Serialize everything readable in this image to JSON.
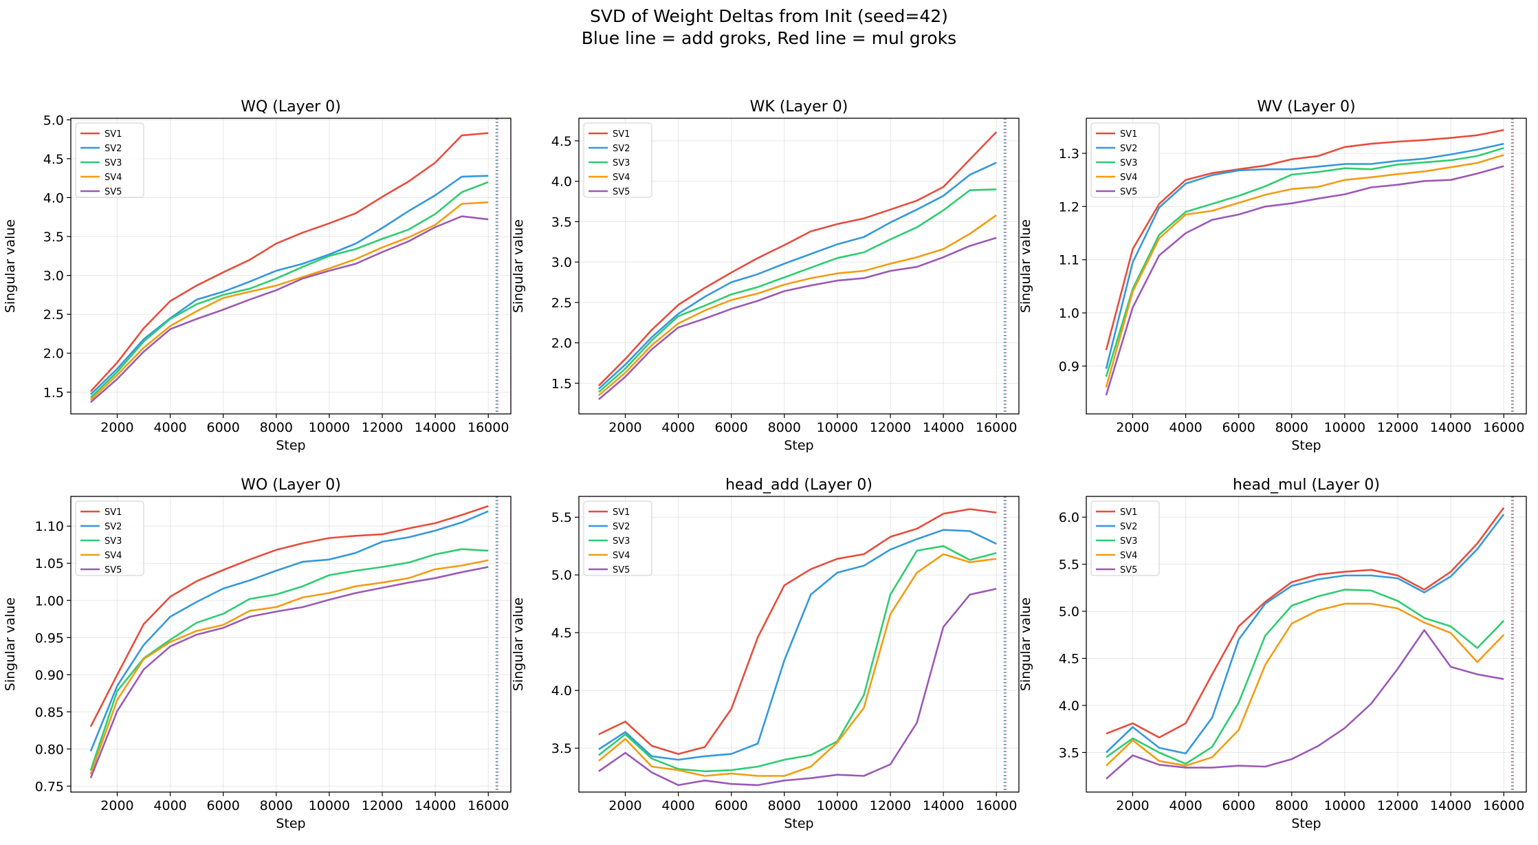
{
  "figure": {
    "title_line1": "SVD of Weight Deltas from Init (seed=42)",
    "title_line2": "Blue line = add groks, Red line = mul groks"
  },
  "series_colors": {
    "SV1": "#e74c3c",
    "SV2": "#3498db",
    "SV3": "#2ecc71",
    "SV4": "#f39c12",
    "SV5": "#9b59b6"
  },
  "marker_colors": {
    "add_groks": "#3498db",
    "mul_groks": "#e74c3c"
  },
  "chart_data": [
    {
      "type": "line",
      "title": "WQ (Layer 0)",
      "xlabel": "Step",
      "ylabel": "Singular value",
      "x": [
        1000,
        2000,
        3000,
        4000,
        5000,
        6000,
        7000,
        8000,
        9000,
        10000,
        11000,
        12000,
        13000,
        14000,
        15000,
        16000
      ],
      "xticks": [
        2000,
        4000,
        6000,
        8000,
        10000,
        12000,
        14000,
        16000
      ],
      "yticks": [
        1.5,
        2.0,
        2.5,
        3.0,
        3.5,
        4.0,
        4.5,
        5.0
      ],
      "ytick_labels": [
        "1.5",
        "2.0",
        "2.5",
        "3.0",
        "3.5",
        "4.0",
        "4.5",
        "5.0"
      ],
      "xlim": [
        250,
        16850
      ],
      "ylim": [
        1.22,
        5.02
      ],
      "grid": true,
      "legend": "upper left",
      "vlines": [
        16300,
        16350
      ],
      "series": [
        {
          "name": "SV1",
          "values": [
            1.51,
            1.88,
            2.32,
            2.67,
            2.87,
            3.04,
            3.2,
            3.41,
            3.55,
            3.67,
            3.8,
            4.01,
            4.21,
            4.45,
            4.8,
            4.83
          ]
        },
        {
          "name": "SV2",
          "values": [
            1.47,
            1.8,
            2.18,
            2.45,
            2.69,
            2.79,
            2.92,
            3.06,
            3.15,
            3.27,
            3.41,
            3.61,
            3.83,
            4.03,
            4.27,
            4.28
          ]
        },
        {
          "name": "SV3",
          "values": [
            1.43,
            1.76,
            2.15,
            2.44,
            2.63,
            2.75,
            2.83,
            2.96,
            3.11,
            3.25,
            3.34,
            3.47,
            3.59,
            3.79,
            4.07,
            4.2
          ]
        },
        {
          "name": "SV4",
          "values": [
            1.4,
            1.72,
            2.07,
            2.35,
            2.54,
            2.71,
            2.79,
            2.87,
            2.98,
            3.09,
            3.21,
            3.36,
            3.49,
            3.65,
            3.92,
            3.94
          ]
        },
        {
          "name": "SV5",
          "values": [
            1.37,
            1.67,
            2.02,
            2.31,
            2.44,
            2.56,
            2.69,
            2.81,
            2.96,
            3.06,
            3.15,
            3.3,
            3.44,
            3.62,
            3.76,
            3.72
          ]
        }
      ]
    },
    {
      "type": "line",
      "title": "WK (Layer 0)",
      "xlabel": "Step",
      "ylabel": "Singular value",
      "x": [
        1000,
        2000,
        3000,
        4000,
        5000,
        6000,
        7000,
        8000,
        9000,
        10000,
        11000,
        12000,
        13000,
        14000,
        15000,
        16000
      ],
      "xticks": [
        2000,
        4000,
        6000,
        8000,
        10000,
        12000,
        14000,
        16000
      ],
      "yticks": [
        1.5,
        2.0,
        2.5,
        3.0,
        3.5,
        4.0,
        4.5
      ],
      "ytick_labels": [
        "1.5",
        "2.0",
        "2.5",
        "3.0",
        "3.5",
        "4.0",
        "4.5"
      ],
      "xlim": [
        250,
        16850
      ],
      "ylim": [
        1.12,
        4.78
      ],
      "grid": true,
      "legend": "upper left",
      "vlines": [
        16300,
        16350
      ],
      "series": [
        {
          "name": "SV1",
          "values": [
            1.47,
            1.8,
            2.16,
            2.47,
            2.68,
            2.87,
            3.05,
            3.21,
            3.38,
            3.47,
            3.54,
            3.65,
            3.76,
            3.93,
            4.27,
            4.61
          ]
        },
        {
          "name": "SV2",
          "values": [
            1.43,
            1.73,
            2.07,
            2.36,
            2.57,
            2.75,
            2.85,
            2.98,
            3.1,
            3.22,
            3.31,
            3.49,
            3.65,
            3.82,
            4.08,
            4.23
          ]
        },
        {
          "name": "SV3",
          "values": [
            1.39,
            1.68,
            2.03,
            2.33,
            2.46,
            2.6,
            2.69,
            2.81,
            2.93,
            3.05,
            3.12,
            3.28,
            3.43,
            3.64,
            3.89,
            3.9
          ]
        },
        {
          "name": "SV4",
          "values": [
            1.35,
            1.63,
            1.97,
            2.24,
            2.4,
            2.53,
            2.61,
            2.72,
            2.8,
            2.86,
            2.89,
            2.98,
            3.06,
            3.16,
            3.35,
            3.58
          ]
        },
        {
          "name": "SV5",
          "values": [
            1.3,
            1.58,
            1.92,
            2.19,
            2.3,
            2.42,
            2.52,
            2.64,
            2.71,
            2.77,
            2.8,
            2.89,
            2.94,
            3.06,
            3.2,
            3.3
          ]
        }
      ]
    },
    {
      "type": "line",
      "title": "WV (Layer 0)",
      "xlabel": "Step",
      "ylabel": "Singular value",
      "x": [
        1000,
        2000,
        3000,
        4000,
        5000,
        6000,
        7000,
        8000,
        9000,
        10000,
        11000,
        12000,
        13000,
        14000,
        15000,
        16000
      ],
      "xticks": [
        2000,
        4000,
        6000,
        8000,
        10000,
        12000,
        14000,
        16000
      ],
      "yticks": [
        0.9,
        1.0,
        1.1,
        1.2,
        1.3
      ],
      "ytick_labels": [
        "0.9",
        "1.0",
        "1.1",
        "1.2",
        "1.3"
      ],
      "xlim": [
        250,
        16850
      ],
      "ylim": [
        0.81,
        1.366
      ],
      "grid": true,
      "legend": "upper left",
      "vlines": [
        16300,
        16350
      ],
      "series": [
        {
          "name": "SV1",
          "values": [
            0.93,
            1.12,
            1.205,
            1.25,
            1.263,
            1.27,
            1.277,
            1.289,
            1.295,
            1.312,
            1.318,
            1.322,
            1.325,
            1.329,
            1.334,
            1.344
          ]
        },
        {
          "name": "SV2",
          "values": [
            0.895,
            1.095,
            1.198,
            1.243,
            1.259,
            1.268,
            1.27,
            1.27,
            1.275,
            1.28,
            1.28,
            1.286,
            1.29,
            1.298,
            1.307,
            1.318
          ]
        },
        {
          "name": "SV3",
          "values": [
            0.88,
            1.045,
            1.147,
            1.19,
            1.205,
            1.22,
            1.238,
            1.26,
            1.265,
            1.272,
            1.27,
            1.279,
            1.283,
            1.287,
            1.295,
            1.31
          ]
        },
        {
          "name": "SV4",
          "values": [
            0.86,
            1.04,
            1.14,
            1.185,
            1.192,
            1.207,
            1.222,
            1.233,
            1.237,
            1.25,
            1.255,
            1.261,
            1.266,
            1.274,
            1.282,
            1.297
          ]
        },
        {
          "name": "SV5",
          "values": [
            0.845,
            1.01,
            1.108,
            1.15,
            1.175,
            1.185,
            1.2,
            1.206,
            1.215,
            1.223,
            1.236,
            1.241,
            1.248,
            1.25,
            1.262,
            1.276
          ]
        }
      ]
    },
    {
      "type": "line",
      "title": "WO (Layer 0)",
      "xlabel": "Step",
      "ylabel": "Singular value",
      "x": [
        1000,
        2000,
        3000,
        4000,
        5000,
        6000,
        7000,
        8000,
        9000,
        10000,
        11000,
        12000,
        13000,
        14000,
        15000,
        16000
      ],
      "xticks": [
        2000,
        4000,
        6000,
        8000,
        10000,
        12000,
        14000,
        16000
      ],
      "yticks": [
        0.75,
        0.8,
        0.85,
        0.9,
        0.95,
        1.0,
        1.05,
        1.1
      ],
      "ytick_labels": [
        "0.75",
        "0.80",
        "0.85",
        "0.90",
        "0.95",
        "1.00",
        "1.05",
        "1.10"
      ],
      "xlim": [
        250,
        16850
      ],
      "ylim": [
        0.742,
        1.14
      ],
      "grid": true,
      "legend": "upper left",
      "vlines": [
        16300,
        16350
      ],
      "series": [
        {
          "name": "SV1",
          "values": [
            0.83,
            0.9,
            0.968,
            1.005,
            1.026,
            1.041,
            1.055,
            1.068,
            1.077,
            1.084,
            1.087,
            1.089,
            1.097,
            1.104,
            1.115,
            1.127
          ]
        },
        {
          "name": "SV2",
          "values": [
            0.797,
            0.885,
            0.94,
            0.978,
            0.998,
            1.016,
            1.027,
            1.04,
            1.052,
            1.055,
            1.064,
            1.079,
            1.085,
            1.094,
            1.105,
            1.12
          ]
        },
        {
          "name": "SV3",
          "values": [
            0.771,
            0.878,
            0.922,
            0.947,
            0.97,
            0.982,
            1.002,
            1.008,
            1.019,
            1.034,
            1.04,
            1.045,
            1.051,
            1.062,
            1.069,
            1.067
          ]
        },
        {
          "name": "SV4",
          "values": [
            0.766,
            0.866,
            0.921,
            0.944,
            0.959,
            0.967,
            0.986,
            0.991,
            1.004,
            1.01,
            1.019,
            1.024,
            1.03,
            1.042,
            1.047,
            1.054
          ]
        },
        {
          "name": "SV5",
          "values": [
            0.761,
            0.851,
            0.907,
            0.938,
            0.954,
            0.963,
            0.978,
            0.985,
            0.991,
            1.001,
            1.01,
            1.017,
            1.024,
            1.03,
            1.038,
            1.045
          ]
        }
      ]
    },
    {
      "type": "line",
      "title": "head_add (Layer 0)",
      "xlabel": "Step",
      "ylabel": "Singular value",
      "x": [
        1000,
        2000,
        3000,
        4000,
        5000,
        6000,
        7000,
        8000,
        9000,
        10000,
        11000,
        12000,
        13000,
        14000,
        15000,
        16000
      ],
      "xticks": [
        2000,
        4000,
        6000,
        8000,
        10000,
        12000,
        14000,
        16000
      ],
      "yticks": [
        3.5,
        4.0,
        4.5,
        5.0,
        5.5
      ],
      "ytick_labels": [
        "3.5",
        "4.0",
        "4.5",
        "5.0",
        "5.5"
      ],
      "xlim": [
        250,
        16850
      ],
      "ylim": [
        3.12,
        5.68
      ],
      "grid": true,
      "legend": "upper left",
      "vlines": [
        16300,
        16350
      ],
      "series": [
        {
          "name": "SV1",
          "values": [
            3.62,
            3.73,
            3.52,
            3.45,
            3.51,
            3.84,
            4.46,
            4.91,
            5.05,
            5.14,
            5.18,
            5.33,
            5.4,
            5.53,
            5.57,
            5.54
          ]
        },
        {
          "name": "SV2",
          "values": [
            3.49,
            3.64,
            3.43,
            3.4,
            3.43,
            3.45,
            3.54,
            4.26,
            4.83,
            5.02,
            5.08,
            5.22,
            5.31,
            5.39,
            5.38,
            5.27
          ]
        },
        {
          "name": "SV3",
          "values": [
            3.44,
            3.62,
            3.41,
            3.32,
            3.3,
            3.31,
            3.34,
            3.4,
            3.44,
            3.56,
            3.96,
            4.83,
            5.21,
            5.25,
            5.13,
            5.19
          ]
        },
        {
          "name": "SV4",
          "values": [
            3.39,
            3.58,
            3.34,
            3.31,
            3.26,
            3.28,
            3.26,
            3.26,
            3.34,
            3.55,
            3.85,
            4.66,
            5.02,
            5.18,
            5.11,
            5.14
          ]
        },
        {
          "name": "SV5",
          "values": [
            3.3,
            3.46,
            3.29,
            3.18,
            3.22,
            3.19,
            3.18,
            3.22,
            3.24,
            3.27,
            3.26,
            3.36,
            3.72,
            4.55,
            4.83,
            4.88
          ]
        }
      ]
    },
    {
      "type": "line",
      "title": "head_mul (Layer 0)",
      "xlabel": "Step",
      "ylabel": "Singular value",
      "x": [
        1000,
        2000,
        3000,
        4000,
        5000,
        6000,
        7000,
        8000,
        9000,
        10000,
        11000,
        12000,
        13000,
        14000,
        15000,
        16000
      ],
      "xticks": [
        2000,
        4000,
        6000,
        8000,
        10000,
        12000,
        14000,
        16000
      ],
      "yticks": [
        3.5,
        4.0,
        4.5,
        5.0,
        5.5,
        6.0
      ],
      "ytick_labels": [
        "3.5",
        "4.0",
        "4.5",
        "5.0",
        "5.5",
        "6.0"
      ],
      "xlim": [
        250,
        16850
      ],
      "ylim": [
        3.08,
        6.22
      ],
      "grid": true,
      "legend": "upper left",
      "vlines": [
        16300,
        16350
      ],
      "series": [
        {
          "name": "SV1",
          "values": [
            3.7,
            3.81,
            3.66,
            3.81,
            4.33,
            4.84,
            5.1,
            5.31,
            5.39,
            5.42,
            5.44,
            5.38,
            5.23,
            5.42,
            5.72,
            6.1
          ]
        },
        {
          "name": "SV2",
          "values": [
            3.5,
            3.77,
            3.55,
            3.49,
            3.87,
            4.7,
            5.08,
            5.27,
            5.34,
            5.38,
            5.38,
            5.35,
            5.2,
            5.37,
            5.66,
            6.03
          ]
        },
        {
          "name": "SV3",
          "values": [
            3.45,
            3.65,
            3.5,
            3.38,
            3.56,
            4.03,
            4.74,
            5.06,
            5.16,
            5.23,
            5.22,
            5.11,
            4.93,
            4.84,
            4.61,
            4.9
          ]
        },
        {
          "name": "SV4",
          "values": [
            3.36,
            3.63,
            3.41,
            3.36,
            3.45,
            3.74,
            4.43,
            4.87,
            5.01,
            5.08,
            5.08,
            5.03,
            4.88,
            4.77,
            4.46,
            4.75
          ]
        },
        {
          "name": "SV5",
          "values": [
            3.22,
            3.47,
            3.37,
            3.34,
            3.34,
            3.36,
            3.35,
            3.43,
            3.57,
            3.76,
            4.02,
            4.39,
            4.8,
            4.41,
            4.33,
            4.28
          ]
        }
      ]
    }
  ]
}
